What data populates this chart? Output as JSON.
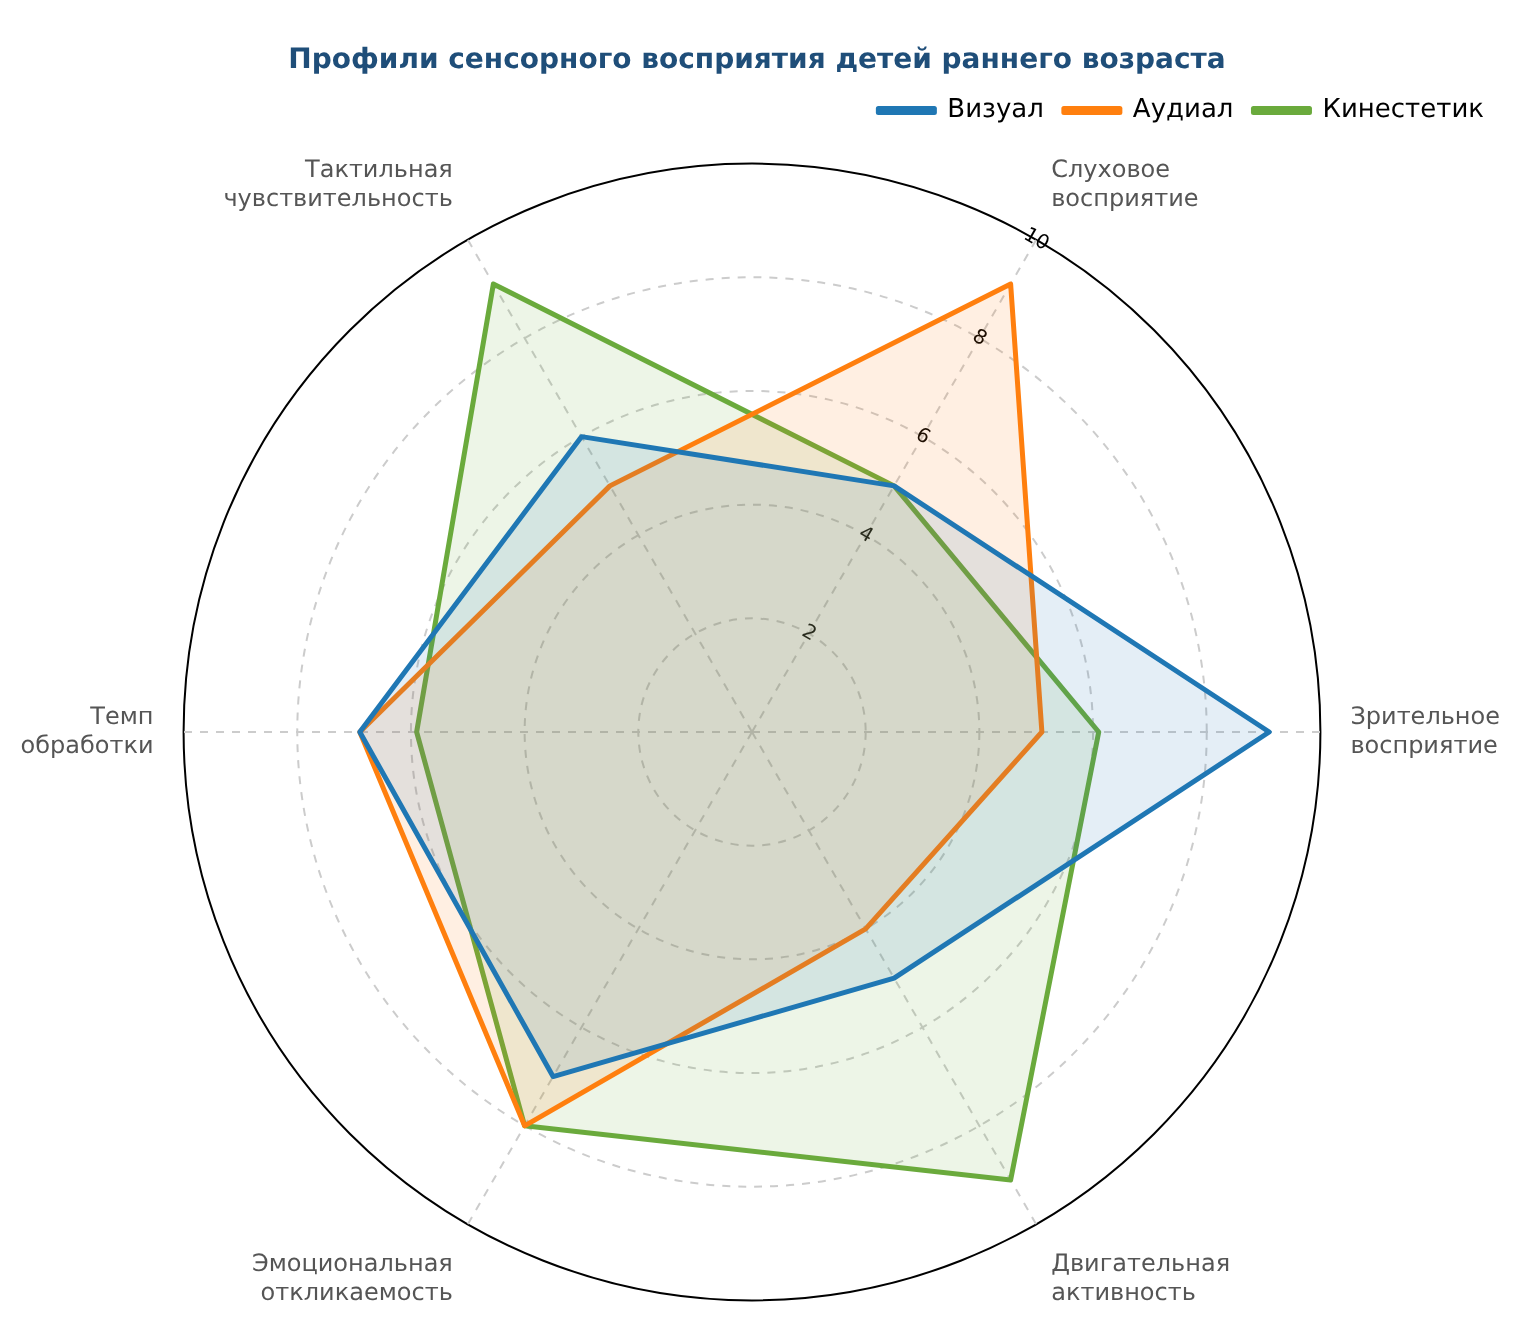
{
  "chart_data": {
    "type": "radar",
    "title": "Профили сенсорного восприятия детей раннего возраста",
    "categories": [
      "Слуховое восприятие",
      "Зрительное восприятие",
      "Двигательная активность",
      "Эмоциональная откликаемость",
      "Темп обработки",
      "Тактильная чувствительность"
    ],
    "series": [
      {
        "name": "Визуал",
        "color": "#1f77b4",
        "values": [
          5.0,
          9.1,
          5.0,
          7.0,
          6.9,
          6.0
        ]
      },
      {
        "name": "Аудиал",
        "color": "#ff7f0e",
        "values": [
          9.1,
          5.1,
          4.0,
          8.0,
          6.9,
          5.0
        ]
      },
      {
        "name": "Кинестетик",
        "color": "#6aaa3c",
        "values": [
          5.0,
          6.1,
          9.1,
          8.0,
          5.9,
          9.1
        ]
      }
    ],
    "ylim": [
      0,
      10
    ],
    "yticks": [
      2,
      4,
      6,
      8,
      10
    ],
    "grid": true,
    "legend": "top right",
    "marker": "none",
    "line_style": "solid"
  }
}
